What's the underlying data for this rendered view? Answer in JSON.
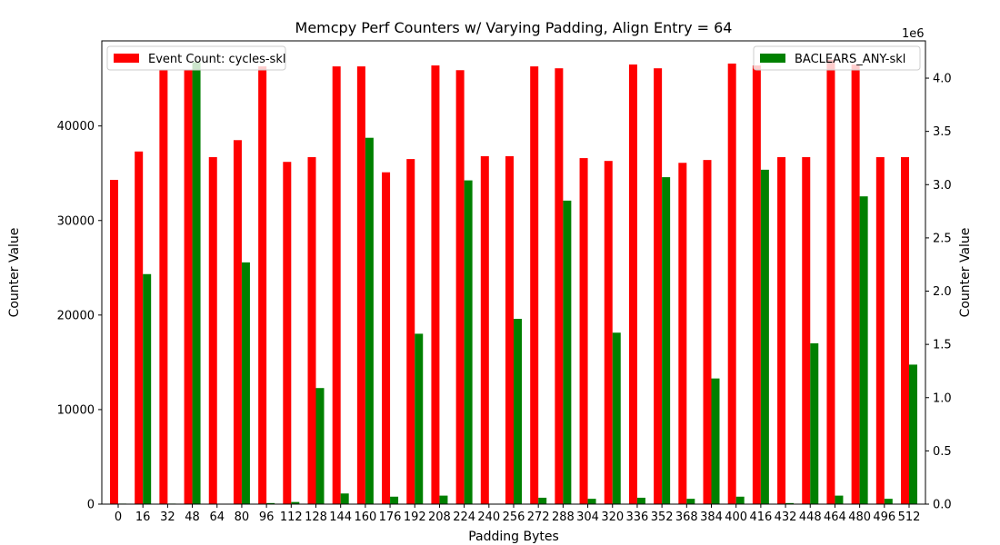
{
  "chart_data": {
    "type": "bar",
    "title": "Memcpy Perf Counters w/ Varying Padding, Align Entry = 64",
    "xlabel": "Padding Bytes",
    "ylabel_left": "Counter Value",
    "ylabel_right": "Counter Value",
    "right_axis_offset_text": "1e6",
    "categories": [
      "0",
      "16",
      "32",
      "48",
      "64",
      "80",
      "96",
      "112",
      "128",
      "144",
      "160",
      "176",
      "192",
      "208",
      "224",
      "240",
      "256",
      "272",
      "288",
      "304",
      "320",
      "336",
      "352",
      "368",
      "384",
      "400",
      "416",
      "432",
      "448",
      "464",
      "480",
      "496",
      "512"
    ],
    "left_axis": {
      "ylim": [
        0,
        49000
      ],
      "ticks": [
        0,
        10000,
        20000,
        30000,
        40000
      ]
    },
    "right_axis": {
      "ylim": [
        0,
        4.35
      ],
      "ticks": [
        0.0,
        0.5,
        1.0,
        1.5,
        2.0,
        2.5,
        3.0,
        3.5,
        4.0
      ],
      "tick_labels": [
        "0.0",
        "0.5",
        "1.0",
        "1.5",
        "2.0",
        "2.5",
        "3.0",
        "3.5",
        "4.0"
      ]
    },
    "series": [
      {
        "name": "Event Count: cycles-skl",
        "axis": "left",
        "color": "#ff0000",
        "values": [
          34300,
          37300,
          45900,
          45900,
          36700,
          38500,
          46300,
          36200,
          36700,
          46300,
          46300,
          35100,
          36500,
          46400,
          45900,
          36800,
          36800,
          46300,
          46100,
          36600,
          36300,
          46500,
          46100,
          36100,
          36400,
          46600,
          46400,
          36700,
          36700,
          47000,
          46500,
          36700,
          36700
        ]
      },
      {
        "name": "BACLEARS_ANY-skl",
        "axis": "right",
        "color": "#008000",
        "values": [
          0.005,
          2.16,
          0.005,
          4.15,
          0.0,
          2.27,
          0.01,
          0.02,
          1.09,
          0.1,
          3.44,
          0.07,
          1.6,
          0.08,
          3.04,
          0.0,
          1.74,
          0.06,
          2.85,
          0.05,
          1.61,
          0.06,
          3.07,
          0.05,
          1.18,
          0.07,
          3.14,
          0.01,
          1.51,
          0.08,
          2.89,
          0.05,
          1.31
        ]
      }
    ],
    "legend": [
      {
        "label": "Event Count: cycles-skl",
        "placement": "upper-left",
        "color": "#ff0000"
      },
      {
        "label": "BACLEARS_ANY-skl",
        "placement": "upper-right",
        "color": "#008000"
      }
    ]
  }
}
